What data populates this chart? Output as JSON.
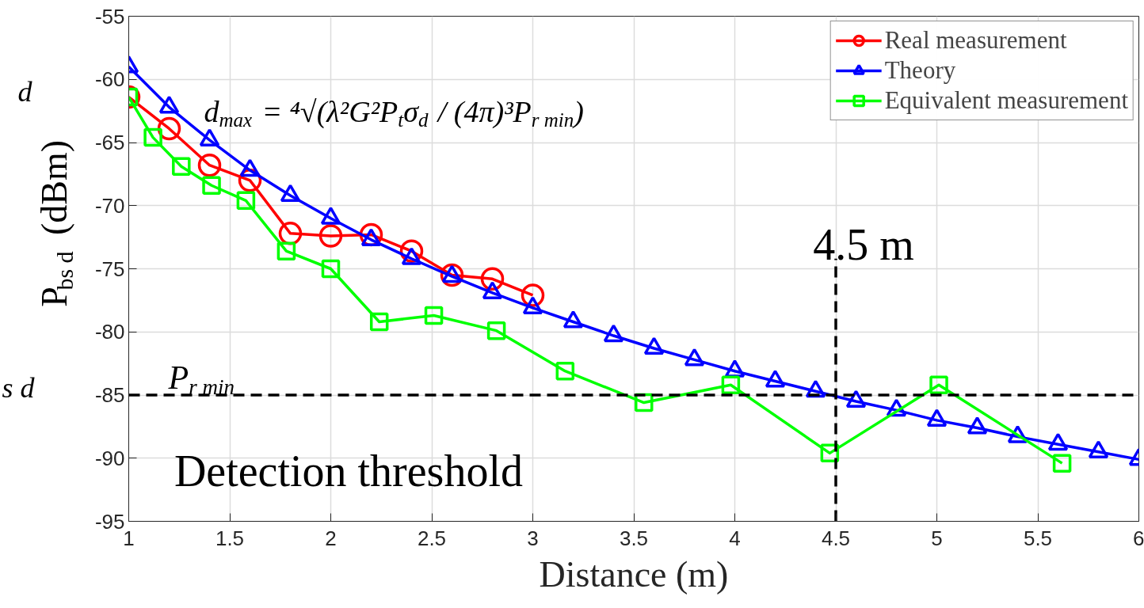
{
  "chart_data": {
    "type": "line",
    "xlabel": "Distance (m)",
    "ylabel": "P$_{bs d}$ (dBm)",
    "xlim": [
      1,
      6
    ],
    "ylim": [
      -95,
      -55
    ],
    "xticks": [
      1,
      1.5,
      2,
      2.5,
      3,
      3.5,
      4,
      4.5,
      5,
      5.5,
      6
    ],
    "yticks": [
      -95,
      -90,
      -85,
      -80,
      -75,
      -70,
      -65,
      -60,
      -55
    ],
    "grid": true,
    "legend": "top right",
    "line_style": "solid",
    "series": [
      {
        "name": "Real measurement",
        "color": "#ff0000",
        "marker": "circle",
        "x": [
          1,
          1.2,
          1.4,
          1.6,
          1.8,
          2,
          2.2,
          2.4,
          2.6,
          2.8,
          3
        ],
        "values": [
          -61.4,
          -63.9,
          -66.8,
          -68.0,
          -72.2,
          -72.4,
          -72.3,
          -73.6,
          -75.5,
          -75.8,
          -77.1
        ]
      },
      {
        "name": "Theory",
        "color": "#0000ff",
        "marker": "triangle",
        "x": [
          1,
          1.2,
          1.4,
          1.6,
          1.8,
          2,
          2.2,
          2.4,
          2.6,
          2.8,
          3,
          3.2,
          3.4,
          3.6,
          3.8,
          4,
          4.2,
          4.4,
          4.6,
          4.8,
          5,
          5.2,
          5.4,
          5.6,
          5.8,
          6
        ],
        "values": [
          -59.0,
          -62.2,
          -64.8,
          -67.2,
          -69.2,
          -71.0,
          -72.7,
          -74.2,
          -75.6,
          -76.9,
          -78.1,
          -79.2,
          -80.3,
          -81.3,
          -82.2,
          -83.1,
          -83.9,
          -84.7,
          -85.5,
          -86.2,
          -87.0,
          -87.6,
          -88.3,
          -88.9,
          -89.5,
          -90.1
        ]
      },
      {
        "name": "Equivalent measurement",
        "color": "#00ff00",
        "marker": "square",
        "x": [
          1,
          1.12,
          1.26,
          1.41,
          1.58,
          1.78,
          2,
          2.24,
          2.51,
          2.82,
          3.16,
          3.55,
          3.98,
          4.47,
          5.01,
          5.62
        ],
        "values": [
          -61.4,
          -64.6,
          -66.9,
          -68.4,
          -69.6,
          -73.6,
          -75.0,
          -79.2,
          -78.7,
          -79.9,
          -83.1,
          -85.6,
          -84.2,
          -89.6,
          -84.2,
          -90.4
        ]
      }
    ],
    "ref_lines": [
      {
        "axis": "y",
        "value": -85,
        "label": "P$_{r min}$",
        "color": "#000000",
        "line_style": "dashed"
      },
      {
        "axis": "x",
        "value": 4.5,
        "label": "4.5 m",
        "color": "#000000",
        "line_style": "dashed"
      }
    ],
    "annotations": [
      "d$_{max}$ = ⁴√(λ²G²P$_{t}$σ$_{d}$ / (4π)³P$_{r min}$)",
      "Detection threshold",
      "d",
      "s d"
    ]
  }
}
